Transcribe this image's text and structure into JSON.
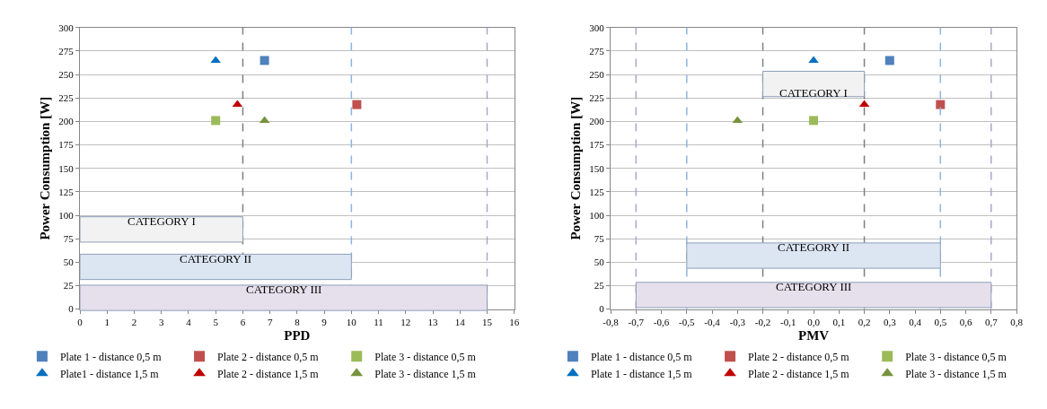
{
  "chart_data": [
    {
      "type": "scatter",
      "xlabel": "PPD",
      "ylabel": "Power Consumption [W]",
      "xlim": [
        0,
        16
      ],
      "xticks": [
        0,
        1,
        2,
        3,
        4,
        5,
        6,
        7,
        8,
        9,
        10,
        11,
        12,
        13,
        14,
        15,
        16
      ],
      "ylim": [
        0,
        300
      ],
      "yticks": [
        0,
        25,
        50,
        75,
        100,
        125,
        150,
        175,
        200,
        225,
        250,
        275,
        300
      ],
      "grid": "y",
      "legend": "bottom",
      "series": [
        {
          "name": "Plate 1 - distance 0,5 m",
          "color": "#4f81bd",
          "marker": "square",
          "x": [
            6.8
          ],
          "values": [
            265
          ]
        },
        {
          "name": "Plate 2 - distance 0,5 m",
          "color": "#c0504d",
          "marker": "square",
          "x": [
            10.2
          ],
          "values": [
            218
          ]
        },
        {
          "name": "Plate 3 - distance 0,5 m",
          "color": "#9bbb59",
          "marker": "square",
          "x": [
            5
          ],
          "values": [
            201
          ]
        },
        {
          "name": "Plate1 - distance 1,5 m",
          "color": "#0070c0",
          "marker": "triangle",
          "x": [
            5
          ],
          "values": [
            265
          ]
        },
        {
          "name": "Plate 2 - distance 1,5 m",
          "color": "#c00000",
          "marker": "triangle",
          "x": [
            5.8
          ],
          "values": [
            218
          ]
        },
        {
          "name": "Plate 3 - distance 1,5 m",
          "color": "#77933c",
          "marker": "triangle",
          "x": [
            6.8
          ],
          "values": [
            201
          ]
        }
      ],
      "ref_lines": [
        {
          "axis": "x",
          "value": 6,
          "color": "#7f7f7f",
          "line_style": "dashed"
        },
        {
          "axis": "x",
          "value": 10,
          "color": "#8eb4e3",
          "line_style": "dashed"
        },
        {
          "axis": "x",
          "value": 15,
          "color": "#b3a2c7",
          "line_style": "dashed"
        }
      ],
      "bands": [
        {
          "axis": "x",
          "from": 0,
          "to": 6,
          "label": "CATEGORY I",
          "color": "#f2f2f2"
        },
        {
          "axis": "x",
          "from": 0,
          "to": 10,
          "label": "CATEGORY II",
          "color": "#dce6f2"
        },
        {
          "axis": "x",
          "from": 0,
          "to": 15,
          "label": "CATEGORY III",
          "color": "#e6e0ec"
        }
      ]
    },
    {
      "type": "scatter",
      "xlabel": "PMV",
      "ylabel": "Power Consumption [W]",
      "xlim": [
        -0.8,
        0.8
      ],
      "xticks": [
        {
          "value": -0.8,
          "label": "-0,8"
        },
        {
          "value": -0.7,
          "label": "-0,7"
        },
        {
          "value": -0.6,
          "label": "-0,6"
        },
        {
          "value": -0.5,
          "label": "-0,5"
        },
        {
          "value": -0.4,
          "label": "-0,4"
        },
        {
          "value": -0.3,
          "label": "-0,3"
        },
        {
          "value": -0.2,
          "label": "-0,2"
        },
        {
          "value": -0.1,
          "label": "-0,1"
        },
        {
          "value": 0,
          "label": "0,0"
        },
        {
          "value": 0.1,
          "label": "0,1"
        },
        {
          "value": 0.2,
          "label": "0,2"
        },
        {
          "value": 0.3,
          "label": "0,3"
        },
        {
          "value": 0.4,
          "label": "0,4"
        },
        {
          "value": 0.5,
          "label": "0,5"
        },
        {
          "value": 0.6,
          "label": "0,6"
        },
        {
          "value": 0.7,
          "label": "0,7"
        },
        {
          "value": 0.8,
          "label": "0,8"
        }
      ],
      "ylim": [
        0,
        300
      ],
      "yticks": [
        0,
        25,
        50,
        75,
        100,
        125,
        150,
        175,
        200,
        225,
        250,
        275,
        300
      ],
      "grid": "y",
      "legend": "bottom",
      "series": [
        {
          "name": "Plate 1 - distance 0,5 m",
          "color": "#4f81bd",
          "marker": "square",
          "x": [
            0.3
          ],
          "values": [
            265
          ]
        },
        {
          "name": "Plate 2 - distance 0,5 m",
          "color": "#c0504d",
          "marker": "square",
          "x": [
            0.5
          ],
          "values": [
            218
          ]
        },
        {
          "name": "Plate 3 - distance 0,5 m",
          "color": "#9bbb59",
          "marker": "square",
          "x": [
            0
          ],
          "values": [
            201
          ]
        },
        {
          "name": "Plate 1 - distance 1,5 m",
          "color": "#0070c0",
          "marker": "triangle",
          "x": [
            0
          ],
          "values": [
            265
          ]
        },
        {
          "name": "Plate 2 - distance 1,5 m",
          "color": "#c00000",
          "marker": "triangle",
          "x": [
            0.2
          ],
          "values": [
            218
          ]
        },
        {
          "name": "Plate 3 - distance 1,5 m",
          "color": "#77933c",
          "marker": "triangle",
          "x": [
            -0.3
          ],
          "values": [
            201
          ]
        }
      ],
      "ref_lines": [
        {
          "axis": "x",
          "value": -0.7,
          "color": "#b3a2c7",
          "line_style": "dashed"
        },
        {
          "axis": "x",
          "value": -0.5,
          "color": "#8eb4e3",
          "line_style": "dashed"
        },
        {
          "axis": "x",
          "value": -0.2,
          "color": "#7f7f7f",
          "line_style": "dashed"
        },
        {
          "axis": "x",
          "value": 0.2,
          "color": "#7f7f7f",
          "line_style": "dashed"
        },
        {
          "axis": "x",
          "value": 0.5,
          "color": "#8eb4e3",
          "line_style": "dashed"
        },
        {
          "axis": "x",
          "value": 0.7,
          "color": "#b3a2c7",
          "line_style": "dashed"
        }
      ],
      "bands": [
        {
          "axis": "x",
          "from": -0.2,
          "to": 0.2,
          "label": "CATEGORY I",
          "color": "#f2f2f2"
        },
        {
          "axis": "x",
          "from": -0.5,
          "to": 0.5,
          "label": "CATEGORY II",
          "color": "#dce6f2"
        },
        {
          "axis": "x",
          "from": -0.7,
          "to": 0.7,
          "label": "CATEGORY III",
          "color": "#e6e0ec"
        }
      ]
    }
  ]
}
